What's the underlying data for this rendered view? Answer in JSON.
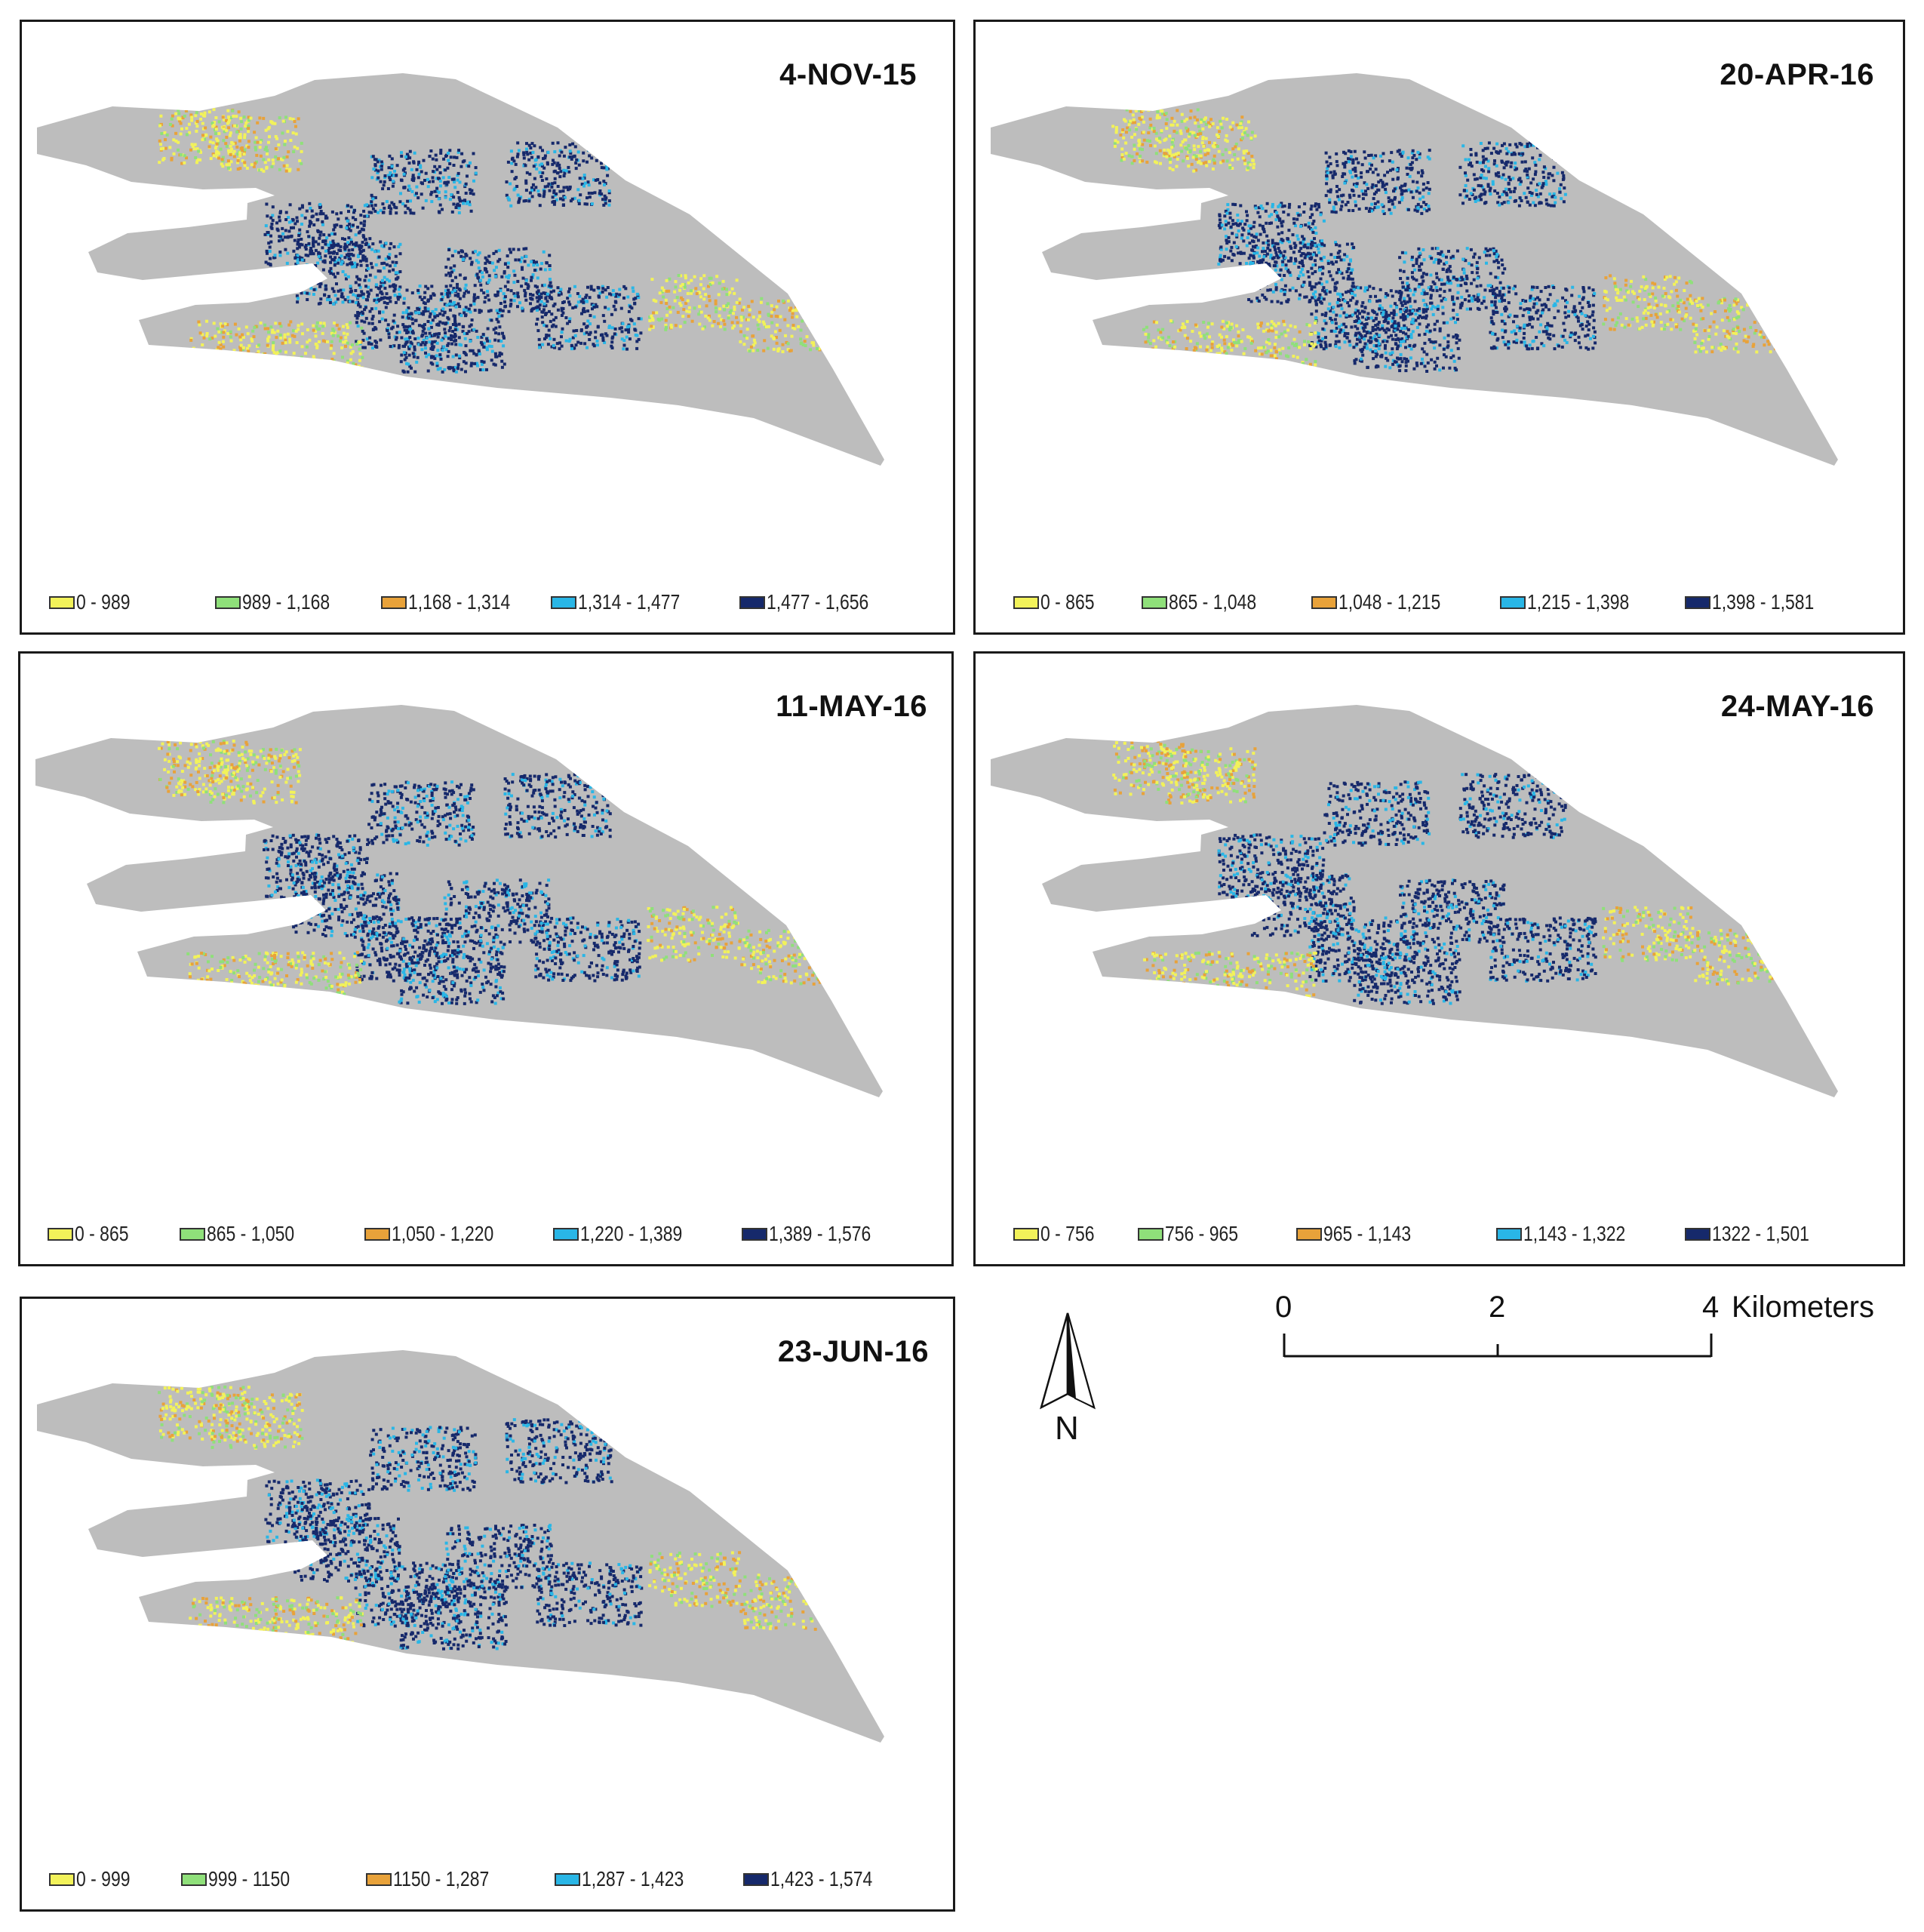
{
  "colors": {
    "background": "#ffffff",
    "land": "#bdbdbd",
    "class1": "#f2f25a",
    "class2": "#8fe07a",
    "class3": "#e8a23a",
    "class4": "#29b6e6",
    "class5": "#16296b"
  },
  "panels": [
    {
      "date": "4-NOV-15",
      "legend": [
        "0 - 989",
        "989 - 1,168",
        "1,168 - 1,314",
        "1,314 - 1,477",
        "1,477 - 1,656"
      ]
    },
    {
      "date": "20-APR-16",
      "legend": [
        "0 - 865",
        "865 - 1,048",
        "1,048 - 1,215",
        "1,215 - 1,398",
        "1,398 - 1,581"
      ]
    },
    {
      "date": "11-MAY-16",
      "legend": [
        "0 - 865",
        "865 - 1,050",
        "1,050 - 1,220",
        "1,220 - 1,389",
        "1,389 - 1,576"
      ]
    },
    {
      "date": "24-MAY-16",
      "legend": [
        "0 - 756",
        "756 - 965",
        "965 - 1,143",
        "1,143 - 1,322",
        "1322 - 1,501"
      ]
    },
    {
      "date": "23-JUN-16",
      "legend": [
        "0 - 999",
        "999 - 1150",
        "1150 - 1,287",
        "1,287 - 1,423",
        "1,423 - 1,574"
      ]
    }
  ],
  "north_arrow": {
    "label": "N",
    "icon": "north-arrow-icon"
  },
  "scale_bar": {
    "ticks": [
      "0",
      "2",
      "4"
    ],
    "unit": "Kilometers"
  }
}
